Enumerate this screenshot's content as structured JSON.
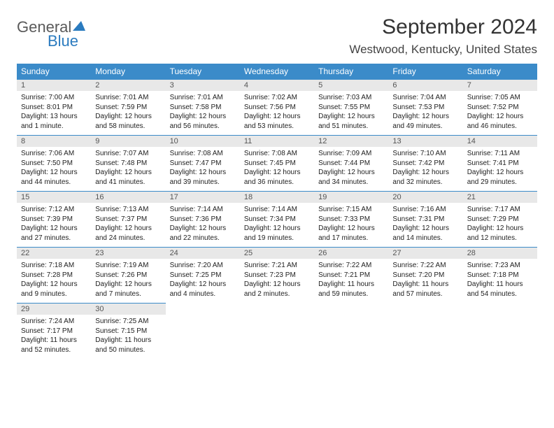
{
  "logo": {
    "part1": "General",
    "part2": "Blue"
  },
  "title": "September 2024",
  "location": "Westwood, Kentucky, United States",
  "colors": {
    "header_bg": "#3b8bc9",
    "header_text": "#ffffff",
    "daynum_bg": "#e8e8e8",
    "cell_border": "#3b8bc9",
    "logo_gray": "#5a5a5a",
    "logo_blue": "#2b7bbf"
  },
  "weekdays": [
    "Sunday",
    "Monday",
    "Tuesday",
    "Wednesday",
    "Thursday",
    "Friday",
    "Saturday"
  ],
  "weeks": [
    [
      {
        "n": "1",
        "sr": "7:00 AM",
        "ss": "8:01 PM",
        "dl": "13 hours and 1 minute."
      },
      {
        "n": "2",
        "sr": "7:01 AM",
        "ss": "7:59 PM",
        "dl": "12 hours and 58 minutes."
      },
      {
        "n": "3",
        "sr": "7:01 AM",
        "ss": "7:58 PM",
        "dl": "12 hours and 56 minutes."
      },
      {
        "n": "4",
        "sr": "7:02 AM",
        "ss": "7:56 PM",
        "dl": "12 hours and 53 minutes."
      },
      {
        "n": "5",
        "sr": "7:03 AM",
        "ss": "7:55 PM",
        "dl": "12 hours and 51 minutes."
      },
      {
        "n": "6",
        "sr": "7:04 AM",
        "ss": "7:53 PM",
        "dl": "12 hours and 49 minutes."
      },
      {
        "n": "7",
        "sr": "7:05 AM",
        "ss": "7:52 PM",
        "dl": "12 hours and 46 minutes."
      }
    ],
    [
      {
        "n": "8",
        "sr": "7:06 AM",
        "ss": "7:50 PM",
        "dl": "12 hours and 44 minutes."
      },
      {
        "n": "9",
        "sr": "7:07 AM",
        "ss": "7:48 PM",
        "dl": "12 hours and 41 minutes."
      },
      {
        "n": "10",
        "sr": "7:08 AM",
        "ss": "7:47 PM",
        "dl": "12 hours and 39 minutes."
      },
      {
        "n": "11",
        "sr": "7:08 AM",
        "ss": "7:45 PM",
        "dl": "12 hours and 36 minutes."
      },
      {
        "n": "12",
        "sr": "7:09 AM",
        "ss": "7:44 PM",
        "dl": "12 hours and 34 minutes."
      },
      {
        "n": "13",
        "sr": "7:10 AM",
        "ss": "7:42 PM",
        "dl": "12 hours and 32 minutes."
      },
      {
        "n": "14",
        "sr": "7:11 AM",
        "ss": "7:41 PM",
        "dl": "12 hours and 29 minutes."
      }
    ],
    [
      {
        "n": "15",
        "sr": "7:12 AM",
        "ss": "7:39 PM",
        "dl": "12 hours and 27 minutes."
      },
      {
        "n": "16",
        "sr": "7:13 AM",
        "ss": "7:37 PM",
        "dl": "12 hours and 24 minutes."
      },
      {
        "n": "17",
        "sr": "7:14 AM",
        "ss": "7:36 PM",
        "dl": "12 hours and 22 minutes."
      },
      {
        "n": "18",
        "sr": "7:14 AM",
        "ss": "7:34 PM",
        "dl": "12 hours and 19 minutes."
      },
      {
        "n": "19",
        "sr": "7:15 AM",
        "ss": "7:33 PM",
        "dl": "12 hours and 17 minutes."
      },
      {
        "n": "20",
        "sr": "7:16 AM",
        "ss": "7:31 PM",
        "dl": "12 hours and 14 minutes."
      },
      {
        "n": "21",
        "sr": "7:17 AM",
        "ss": "7:29 PM",
        "dl": "12 hours and 12 minutes."
      }
    ],
    [
      {
        "n": "22",
        "sr": "7:18 AM",
        "ss": "7:28 PM",
        "dl": "12 hours and 9 minutes."
      },
      {
        "n": "23",
        "sr": "7:19 AM",
        "ss": "7:26 PM",
        "dl": "12 hours and 7 minutes."
      },
      {
        "n": "24",
        "sr": "7:20 AM",
        "ss": "7:25 PM",
        "dl": "12 hours and 4 minutes."
      },
      {
        "n": "25",
        "sr": "7:21 AM",
        "ss": "7:23 PM",
        "dl": "12 hours and 2 minutes."
      },
      {
        "n": "26",
        "sr": "7:22 AM",
        "ss": "7:21 PM",
        "dl": "11 hours and 59 minutes."
      },
      {
        "n": "27",
        "sr": "7:22 AM",
        "ss": "7:20 PM",
        "dl": "11 hours and 57 minutes."
      },
      {
        "n": "28",
        "sr": "7:23 AM",
        "ss": "7:18 PM",
        "dl": "11 hours and 54 minutes."
      }
    ],
    [
      {
        "n": "29",
        "sr": "7:24 AM",
        "ss": "7:17 PM",
        "dl": "11 hours and 52 minutes."
      },
      {
        "n": "30",
        "sr": "7:25 AM",
        "ss": "7:15 PM",
        "dl": "11 hours and 50 minutes."
      },
      null,
      null,
      null,
      null,
      null
    ]
  ],
  "labels": {
    "sunrise": "Sunrise:",
    "sunset": "Sunset:",
    "daylight": "Daylight:"
  }
}
